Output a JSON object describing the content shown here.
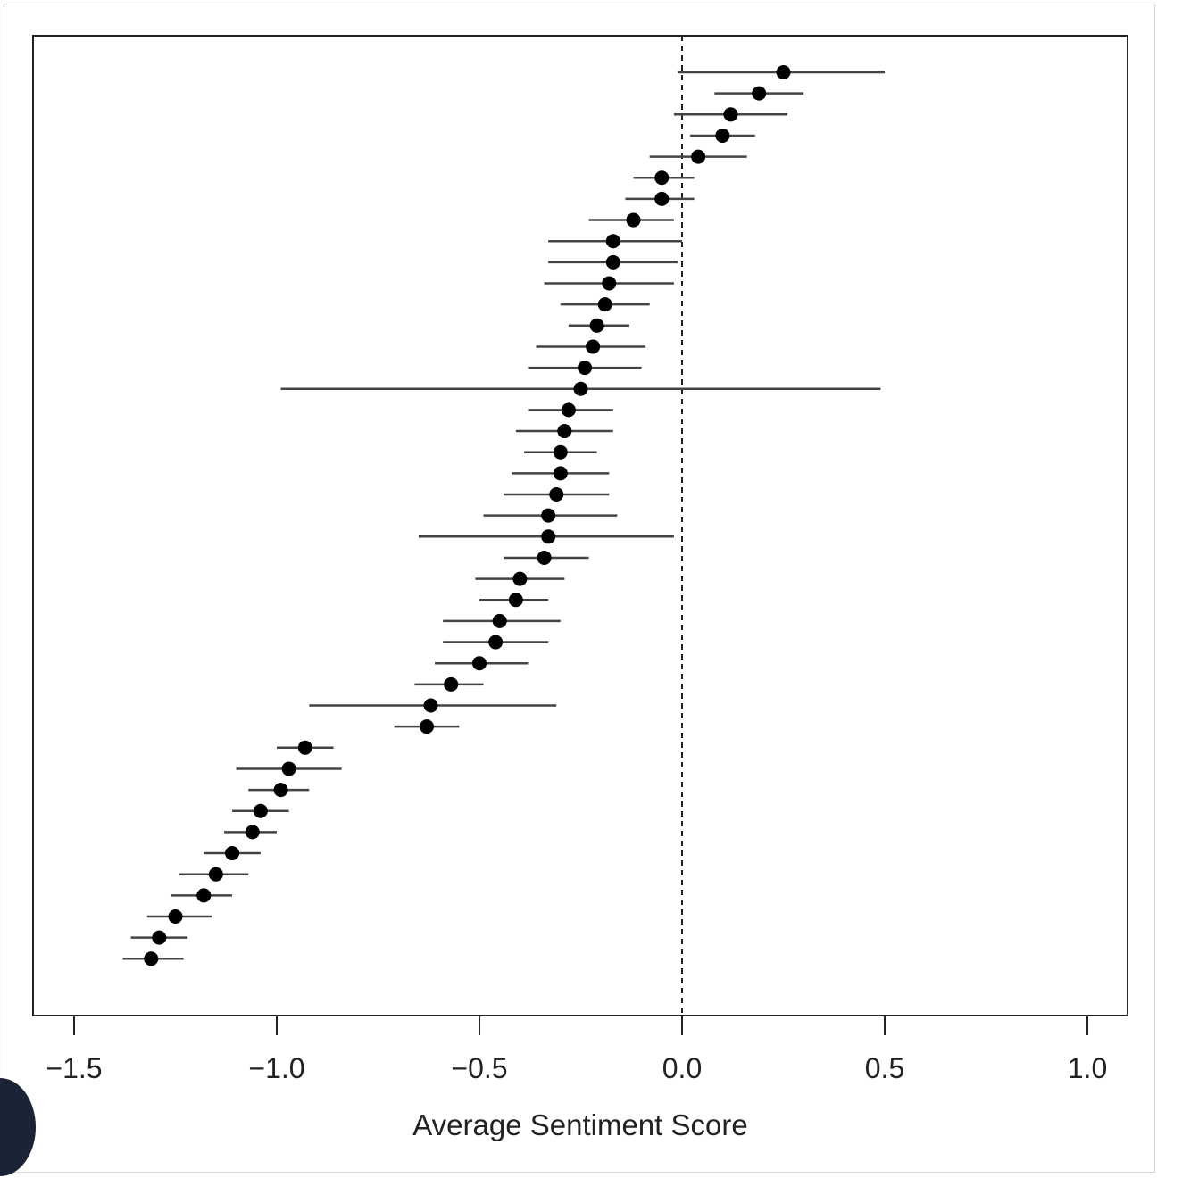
{
  "chart_data": {
    "type": "forest",
    "xlabel": "Average Sentiment Score",
    "ylabel": "",
    "xlim": [
      -1.6,
      1.1
    ],
    "x_ticks": [
      -1.5,
      -1.0,
      -0.5,
      0.0,
      0.5,
      1.0
    ],
    "x_tick_labels": [
      "−1.5",
      "−1.0",
      "−0.5",
      "0.0",
      "0.5",
      "1.0"
    ],
    "reference_line": 0.0,
    "grid": false,
    "points": [
      {
        "estimate": 0.25,
        "lower": -0.01,
        "upper": 0.5
      },
      {
        "estimate": 0.19,
        "lower": 0.08,
        "upper": 0.3
      },
      {
        "estimate": 0.12,
        "lower": -0.02,
        "upper": 0.26
      },
      {
        "estimate": 0.1,
        "lower": 0.02,
        "upper": 0.18
      },
      {
        "estimate": 0.04,
        "lower": -0.08,
        "upper": 0.16
      },
      {
        "estimate": -0.05,
        "lower": -0.12,
        "upper": 0.03
      },
      {
        "estimate": -0.05,
        "lower": -0.14,
        "upper": 0.03
      },
      {
        "estimate": -0.12,
        "lower": -0.23,
        "upper": -0.02
      },
      {
        "estimate": -0.17,
        "lower": -0.33,
        "upper": 0.0
      },
      {
        "estimate": -0.17,
        "lower": -0.33,
        "upper": -0.01
      },
      {
        "estimate": -0.18,
        "lower": -0.34,
        "upper": -0.02
      },
      {
        "estimate": -0.19,
        "lower": -0.3,
        "upper": -0.08
      },
      {
        "estimate": -0.21,
        "lower": -0.28,
        "upper": -0.13
      },
      {
        "estimate": -0.22,
        "lower": -0.36,
        "upper": -0.09
      },
      {
        "estimate": -0.24,
        "lower": -0.38,
        "upper": -0.1
      },
      {
        "estimate": -0.25,
        "lower": -0.99,
        "upper": 0.49
      },
      {
        "estimate": -0.28,
        "lower": -0.38,
        "upper": -0.17
      },
      {
        "estimate": -0.29,
        "lower": -0.41,
        "upper": -0.17
      },
      {
        "estimate": -0.3,
        "lower": -0.39,
        "upper": -0.21
      },
      {
        "estimate": -0.3,
        "lower": -0.42,
        "upper": -0.18
      },
      {
        "estimate": -0.31,
        "lower": -0.44,
        "upper": -0.18
      },
      {
        "estimate": -0.33,
        "lower": -0.49,
        "upper": -0.16
      },
      {
        "estimate": -0.33,
        "lower": -0.65,
        "upper": -0.02
      },
      {
        "estimate": -0.34,
        "lower": -0.44,
        "upper": -0.23
      },
      {
        "estimate": -0.4,
        "lower": -0.51,
        "upper": -0.29
      },
      {
        "estimate": -0.41,
        "lower": -0.5,
        "upper": -0.33
      },
      {
        "estimate": -0.45,
        "lower": -0.59,
        "upper": -0.3
      },
      {
        "estimate": -0.46,
        "lower": -0.59,
        "upper": -0.33
      },
      {
        "estimate": -0.5,
        "lower": -0.61,
        "upper": -0.38
      },
      {
        "estimate": -0.57,
        "lower": -0.66,
        "upper": -0.49
      },
      {
        "estimate": -0.62,
        "lower": -0.92,
        "upper": -0.31
      },
      {
        "estimate": -0.63,
        "lower": -0.71,
        "upper": -0.55
      },
      {
        "estimate": -0.93,
        "lower": -1.0,
        "upper": -0.86
      },
      {
        "estimate": -0.97,
        "lower": -1.1,
        "upper": -0.84
      },
      {
        "estimate": -0.99,
        "lower": -1.07,
        "upper": -0.92
      },
      {
        "estimate": -1.04,
        "lower": -1.11,
        "upper": -0.97
      },
      {
        "estimate": -1.06,
        "lower": -1.13,
        "upper": -1.0
      },
      {
        "estimate": -1.11,
        "lower": -1.18,
        "upper": -1.04
      },
      {
        "estimate": -1.15,
        "lower": -1.24,
        "upper": -1.07
      },
      {
        "estimate": -1.18,
        "lower": -1.26,
        "upper": -1.11
      },
      {
        "estimate": -1.25,
        "lower": -1.32,
        "upper": -1.16
      },
      {
        "estimate": -1.29,
        "lower": -1.36,
        "upper": -1.22
      },
      {
        "estimate": -1.31,
        "lower": -1.38,
        "upper": -1.23
      }
    ]
  }
}
